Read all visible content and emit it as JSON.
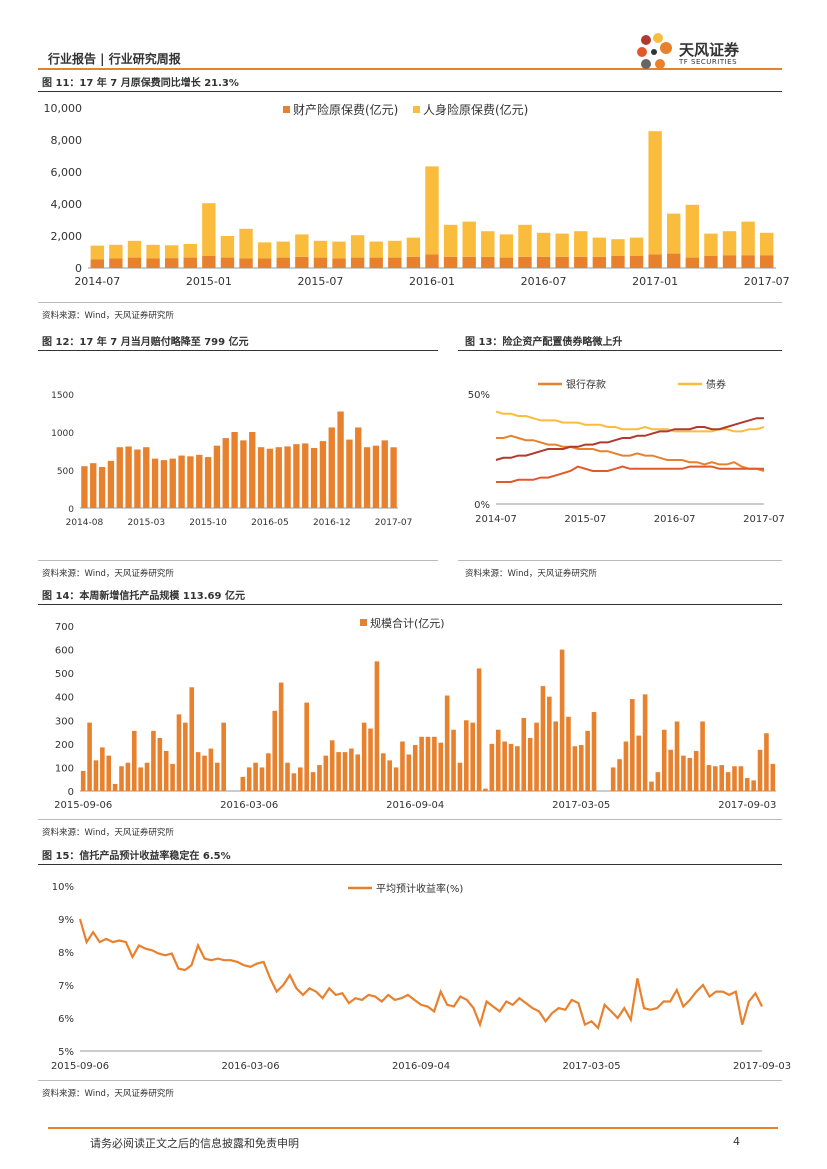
{
  "header": {
    "left": "行业报告 | 行业研究周报",
    "logo_cn": "天风证券",
    "logo_en": "TF SECURITIES"
  },
  "footer": {
    "disclaimer": "请务必阅读正文之后的信息披露和免责申明",
    "page": "4"
  },
  "source_text": "资料来源：Wind，天风证券研究所",
  "colors": {
    "orange": "#E8812E",
    "yellow": "#F9BC3D",
    "red": "#E0592A",
    "darkred": "#B03A2E",
    "accent": "#E8812E"
  },
  "chart_data": [
    {
      "id": "fig11",
      "type": "bar",
      "stacked": true,
      "title": "图 11：17 年 7 月原保费同比增长 21.3%",
      "xtick_labels": [
        "2014-07",
        "2015-01",
        "2015-07",
        "2016-01",
        "2016-07",
        "2017-01",
        "2017-07"
      ],
      "xtick_index": [
        0,
        6,
        12,
        18,
        24,
        30,
        36
      ],
      "ylim": [
        0,
        10000
      ],
      "yticks": [
        "0",
        "2,000",
        "4,000",
        "6,000",
        "8,000",
        "10,000"
      ],
      "series": [
        {
          "name": "财产险原保费(亿元)",
          "color": "#E8812E",
          "values": [
            550,
            600,
            650,
            600,
            620,
            650,
            750,
            650,
            600,
            600,
            650,
            700,
            650,
            600,
            650,
            650,
            650,
            700,
            850,
            700,
            700,
            700,
            650,
            700,
            700,
            700,
            700,
            700,
            750,
            750,
            850,
            900,
            650,
            750,
            800,
            800,
            800
          ]
        },
        {
          "name": "人身险原保费(亿元)",
          "color": "#F9BC3D",
          "values": [
            850,
            850,
            1050,
            850,
            800,
            850,
            3300,
            1350,
            1850,
            1000,
            1000,
            1400,
            1050,
            1050,
            1400,
            1000,
            1050,
            1200,
            5500,
            2000,
            2200,
            1600,
            1450,
            2000,
            1500,
            1450,
            1600,
            1200,
            1050,
            1150,
            7700,
            2500,
            3300,
            1400,
            1500,
            2100,
            1400
          ]
        }
      ]
    },
    {
      "id": "fig12",
      "type": "bar",
      "title": "图 12：17 年 7 月当月赔付略降至 799 亿元",
      "xtick_labels": [
        "2014-08",
        "2015-03",
        "2015-10",
        "2016-05",
        "2016-12",
        "2017-07"
      ],
      "xtick_index": [
        0,
        7,
        14,
        21,
        28,
        35
      ],
      "ylim": [
        0,
        1500
      ],
      "yticks": [
        "0",
        "500",
        "1000",
        "1500"
      ],
      "series": [
        {
          "name": "当月赔付",
          "color": "#E8812E",
          "values": [
            550,
            590,
            540,
            620,
            800,
            810,
            770,
            800,
            650,
            630,
            650,
            690,
            680,
            700,
            670,
            820,
            920,
            1000,
            890,
            1000,
            800,
            780,
            800,
            810,
            840,
            850,
            790,
            880,
            1060,
            1270,
            900,
            1060,
            800,
            820,
            890,
            799
          ]
        }
      ]
    },
    {
      "id": "fig13",
      "type": "line",
      "title": "图 13：险企资产配置债券略微上升",
      "xtick_labels": [
        "2014-07",
        "2015-07",
        "2016-07",
        "2017-07"
      ],
      "xtick_index": [
        0,
        12,
        24,
        36
      ],
      "ylim": [
        0,
        0.5
      ],
      "yticks": [
        "0%",
        "50%"
      ],
      "legend_labels": [
        "银行存款",
        "债券"
      ],
      "series": [
        {
          "name": "银行存款",
          "color": "#E8812E",
          "values": [
            0.3,
            0.3,
            0.31,
            0.3,
            0.29,
            0.29,
            0.28,
            0.27,
            0.27,
            0.26,
            0.26,
            0.25,
            0.25,
            0.25,
            0.24,
            0.24,
            0.23,
            0.22,
            0.22,
            0.23,
            0.22,
            0.22,
            0.21,
            0.2,
            0.2,
            0.2,
            0.19,
            0.19,
            0.18,
            0.19,
            0.18,
            0.18,
            0.19,
            0.17,
            0.16,
            0.16,
            0.15
          ]
        },
        {
          "name": "债券",
          "color": "#F9BC3D",
          "values": [
            0.42,
            0.41,
            0.41,
            0.4,
            0.4,
            0.39,
            0.38,
            0.38,
            0.38,
            0.37,
            0.37,
            0.37,
            0.36,
            0.36,
            0.36,
            0.35,
            0.35,
            0.34,
            0.34,
            0.34,
            0.35,
            0.34,
            0.34,
            0.34,
            0.33,
            0.33,
            0.33,
            0.33,
            0.33,
            0.33,
            0.34,
            0.34,
            0.33,
            0.33,
            0.34,
            0.34,
            0.35
          ]
        },
        {
          "name": "",
          "color": "#B03A2E",
          "values": [
            0.2,
            0.21,
            0.21,
            0.22,
            0.22,
            0.23,
            0.24,
            0.25,
            0.25,
            0.25,
            0.26,
            0.26,
            0.27,
            0.27,
            0.28,
            0.28,
            0.29,
            0.3,
            0.3,
            0.31,
            0.31,
            0.32,
            0.33,
            0.33,
            0.34,
            0.34,
            0.34,
            0.35,
            0.35,
            0.34,
            0.34,
            0.35,
            0.36,
            0.37,
            0.38,
            0.39,
            0.39
          ]
        },
        {
          "name": "",
          "color": "#E0592A",
          "values": [
            0.1,
            0.1,
            0.1,
            0.11,
            0.11,
            0.11,
            0.12,
            0.12,
            0.13,
            0.14,
            0.15,
            0.17,
            0.16,
            0.15,
            0.15,
            0.15,
            0.16,
            0.17,
            0.16,
            0.16,
            0.16,
            0.16,
            0.16,
            0.16,
            0.16,
            0.16,
            0.17,
            0.17,
            0.17,
            0.17,
            0.16,
            0.16,
            0.16,
            0.16,
            0.16,
            0.16,
            0.16
          ]
        }
      ]
    },
    {
      "id": "fig14",
      "type": "bar",
      "title": "图 14：本周新增信托产品规模 113.69 亿元",
      "xtick_labels": [
        "2015-09-06",
        "2016-03-06",
        "2016-09-04",
        "2017-03-05",
        "2017-09-03"
      ],
      "xtick_index": [
        0,
        26,
        52,
        78,
        104
      ],
      "ylim": [
        0,
        700
      ],
      "yticks": [
        "0",
        "100",
        "200",
        "300",
        "400",
        "500",
        "600",
        "700"
      ],
      "legend_labels": [
        "规模合计(亿元)"
      ],
      "series": [
        {
          "name": "规模合计(亿元)",
          "color": "#E8812E",
          "values": [
            85,
            290,
            130,
            185,
            150,
            30,
            105,
            120,
            255,
            100,
            120,
            255,
            225,
            170,
            115,
            325,
            290,
            440,
            165,
            150,
            180,
            120,
            290,
            0,
            0,
            60,
            100,
            120,
            100,
            160,
            340,
            460,
            120,
            75,
            100,
            375,
            80,
            110,
            150,
            215,
            165,
            165,
            180,
            155,
            290,
            265,
            550,
            160,
            130,
            100,
            210,
            155,
            195,
            230,
            230,
            230,
            205,
            405,
            260,
            120,
            300,
            290,
            520,
            10,
            200,
            260,
            210,
            200,
            190,
            310,
            225,
            290,
            445,
            400,
            295,
            600,
            315,
            190,
            195,
            255,
            335,
            0,
            0,
            100,
            135,
            210,
            390,
            235,
            410,
            40,
            80,
            260,
            175,
            295,
            150,
            140,
            170,
            295,
            110,
            105,
            110,
            80,
            105,
            105,
            55,
            45,
            175,
            245,
            115
          ]
        }
      ]
    },
    {
      "id": "fig15",
      "type": "line",
      "title": "图 15：信托产品预计收益率稳定在 6.5%",
      "xtick_labels": [
        "2015-09-06",
        "2016-03-06",
        "2016-09-04",
        "2017-03-05",
        "2017-09-03"
      ],
      "xtick_index": [
        0,
        26,
        52,
        78,
        104
      ],
      "ylim": [
        5,
        10
      ],
      "yticks": [
        "5%",
        "6%",
        "7%",
        "8%",
        "9%",
        "10%"
      ],
      "legend_labels": [
        "平均预计收益率(%)"
      ],
      "series": [
        {
          "name": "平均预计收益率(%)",
          "color": "#E8812E",
          "values": [
            9.0,
            8.3,
            8.6,
            8.3,
            8.4,
            8.3,
            8.35,
            8.3,
            7.85,
            8.2,
            8.1,
            8.05,
            7.95,
            7.9,
            7.95,
            7.5,
            7.45,
            7.6,
            8.2,
            7.8,
            7.75,
            7.8,
            7.75,
            7.75,
            7.7,
            7.6,
            7.55,
            7.65,
            7.7,
            7.2,
            6.8,
            7.0,
            7.3,
            6.9,
            6.7,
            6.9,
            6.8,
            6.6,
            6.9,
            6.7,
            6.75,
            6.45,
            6.6,
            6.55,
            6.7,
            6.65,
            6.5,
            6.7,
            6.55,
            6.6,
            6.7,
            6.55,
            6.4,
            6.35,
            6.2,
            6.8,
            6.4,
            6.35,
            6.65,
            6.55,
            6.3,
            5.8,
            6.5,
            6.35,
            6.2,
            6.5,
            6.4,
            6.6,
            6.45,
            6.3,
            6.2,
            5.9,
            6.15,
            6.3,
            6.25,
            6.55,
            6.45,
            5.8,
            5.9,
            5.7,
            6.4,
            6.2,
            6.0,
            6.3,
            5.95,
            7.2,
            6.3,
            6.25,
            6.3,
            6.5,
            6.5,
            6.85,
            6.35,
            6.55,
            6.8,
            7.0,
            6.65,
            6.8,
            6.8,
            6.7,
            6.8,
            5.8,
            6.5,
            6.75,
            6.35
          ]
        }
      ]
    }
  ]
}
